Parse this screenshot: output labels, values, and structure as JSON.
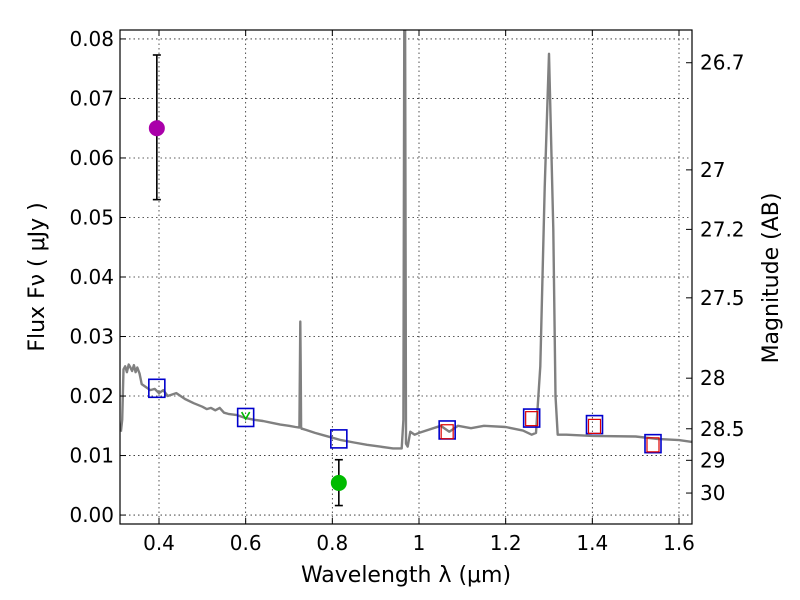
{
  "chart_data": {
    "type": "line",
    "title": "",
    "xlabel": "Wavelength  λ (μm)",
    "ylabel": "Flux  Fν  ( μJy )",
    "y2label": "Magnitude (AB)",
    "xlim": [
      0.31,
      1.63
    ],
    "ylim": [
      -0.0015,
      0.0815
    ],
    "grid": true,
    "x_ticks": [
      {
        "value": 0.4,
        "label": "0.4"
      },
      {
        "value": 0.6,
        "label": "0.6"
      },
      {
        "value": 0.8,
        "label": "0.8"
      },
      {
        "value": 1.0,
        "label": "1"
      },
      {
        "value": 1.2,
        "label": "1.2"
      },
      {
        "value": 1.4,
        "label": "1.4"
      },
      {
        "value": 1.6,
        "label": "1.6"
      }
    ],
    "y_ticks": [
      {
        "value": 0.0,
        "label": "0.00"
      },
      {
        "value": 0.01,
        "label": "0.01"
      },
      {
        "value": 0.02,
        "label": "0.02"
      },
      {
        "value": 0.03,
        "label": "0.03"
      },
      {
        "value": 0.04,
        "label": "0.04"
      },
      {
        "value": 0.05,
        "label": "0.05"
      },
      {
        "value": 0.06,
        "label": "0.06"
      },
      {
        "value": 0.07,
        "label": "0.07"
      },
      {
        "value": 0.08,
        "label": "0.08"
      }
    ],
    "y2_ticks": [
      {
        "flux": 0.076,
        "label": "26.7"
      },
      {
        "flux": 0.058,
        "label": "27"
      },
      {
        "flux": 0.048,
        "label": "27.2"
      },
      {
        "flux": 0.0365,
        "label": "27.5"
      },
      {
        "flux": 0.023,
        "label": "28"
      },
      {
        "flux": 0.0145,
        "label": "28.5"
      },
      {
        "flux": 0.0092,
        "label": "29"
      },
      {
        "flux": 0.0037,
        "label": "30"
      }
    ],
    "colors": {
      "spectrum": "#808080",
      "model_box": "#0000cc",
      "observed_box": "#dd0000",
      "uv_point": "#aa00aa",
      "detection_point": "#00bb00",
      "tick_mark": "#00bb00"
    },
    "series": [
      {
        "name": "SED model spectrum",
        "style": "line",
        "x": [
          0.312,
          0.315,
          0.318,
          0.322,
          0.326,
          0.33,
          0.334,
          0.338,
          0.342,
          0.346,
          0.35,
          0.355,
          0.36,
          0.37,
          0.38,
          0.39,
          0.4,
          0.41,
          0.42,
          0.44,
          0.46,
          0.48,
          0.5,
          0.51,
          0.52,
          0.53,
          0.54,
          0.55,
          0.56,
          0.58,
          0.6,
          0.62,
          0.64,
          0.66,
          0.68,
          0.7,
          0.715,
          0.724,
          0.726,
          0.727,
          0.728,
          0.729,
          0.731,
          0.74,
          0.76,
          0.78,
          0.8,
          0.82,
          0.85,
          0.88,
          0.91,
          0.94,
          0.96,
          0.964,
          0.966,
          0.967,
          0.968,
          0.97,
          0.974,
          0.98,
          0.99,
          1.0,
          1.05,
          1.07,
          1.09,
          1.12,
          1.15,
          1.2,
          1.24,
          1.26,
          1.27,
          1.28,
          1.29,
          1.3,
          1.31,
          1.315,
          1.32,
          1.34,
          1.4,
          1.5,
          1.55,
          1.6,
          1.63
        ],
        "y": [
          0.014,
          0.016,
          0.0245,
          0.025,
          0.024,
          0.0253,
          0.0248,
          0.0242,
          0.0252,
          0.024,
          0.0248,
          0.0238,
          0.022,
          0.0215,
          0.021,
          0.0212,
          0.0205,
          0.021,
          0.02,
          0.0205,
          0.0195,
          0.0188,
          0.0182,
          0.0178,
          0.018,
          0.0176,
          0.018,
          0.0172,
          0.017,
          0.0168,
          0.0163,
          0.016,
          0.0158,
          0.0155,
          0.0152,
          0.015,
          0.0148,
          0.0147,
          0.0325,
          0.025,
          0.0148,
          0.0145,
          0.0145,
          0.0143,
          0.0138,
          0.0134,
          0.013,
          0.0126,
          0.0122,
          0.0118,
          0.0115,
          0.0112,
          0.0112,
          0.016,
          0.084,
          0.084,
          0.084,
          0.012,
          0.0115,
          0.014,
          0.0135,
          0.0138,
          0.015,
          0.014,
          0.015,
          0.0146,
          0.015,
          0.0148,
          0.0142,
          0.0135,
          0.0138,
          0.025,
          0.055,
          0.0775,
          0.048,
          0.02,
          0.0135,
          0.0135,
          0.0133,
          0.0132,
          0.0128,
          0.0126,
          0.0123
        ]
      },
      {
        "name": "Model photometry",
        "style": "open-square",
        "x": [
          0.395,
          0.6,
          0.815,
          1.065,
          1.26,
          1.405,
          1.54
        ],
        "y": [
          0.0213,
          0.0164,
          0.0128,
          0.0143,
          0.0163,
          0.0152,
          0.012
        ]
      },
      {
        "name": "Observed photometry",
        "style": "open-square-small",
        "x": [
          1.065,
          1.26,
          1.405,
          1.54
        ],
        "y": [
          0.014,
          0.0162,
          0.0149,
          0.0118
        ]
      },
      {
        "name": "UV point",
        "style": "point-errorbar",
        "x": [
          0.395
        ],
        "y": [
          0.065
        ],
        "yerr_low": [
          0.053
        ],
        "yerr_high": [
          0.0773
        ]
      },
      {
        "name": "Detection point",
        "style": "point-errorbar",
        "x": [
          0.815
        ],
        "y": [
          0.0054
        ],
        "yerr_low": [
          0.0016
        ],
        "yerr_high": [
          0.0093
        ]
      },
      {
        "name": "Green tick marker",
        "style": "tick",
        "x": [
          0.6
        ],
        "y": [
          0.0168
        ]
      }
    ]
  }
}
